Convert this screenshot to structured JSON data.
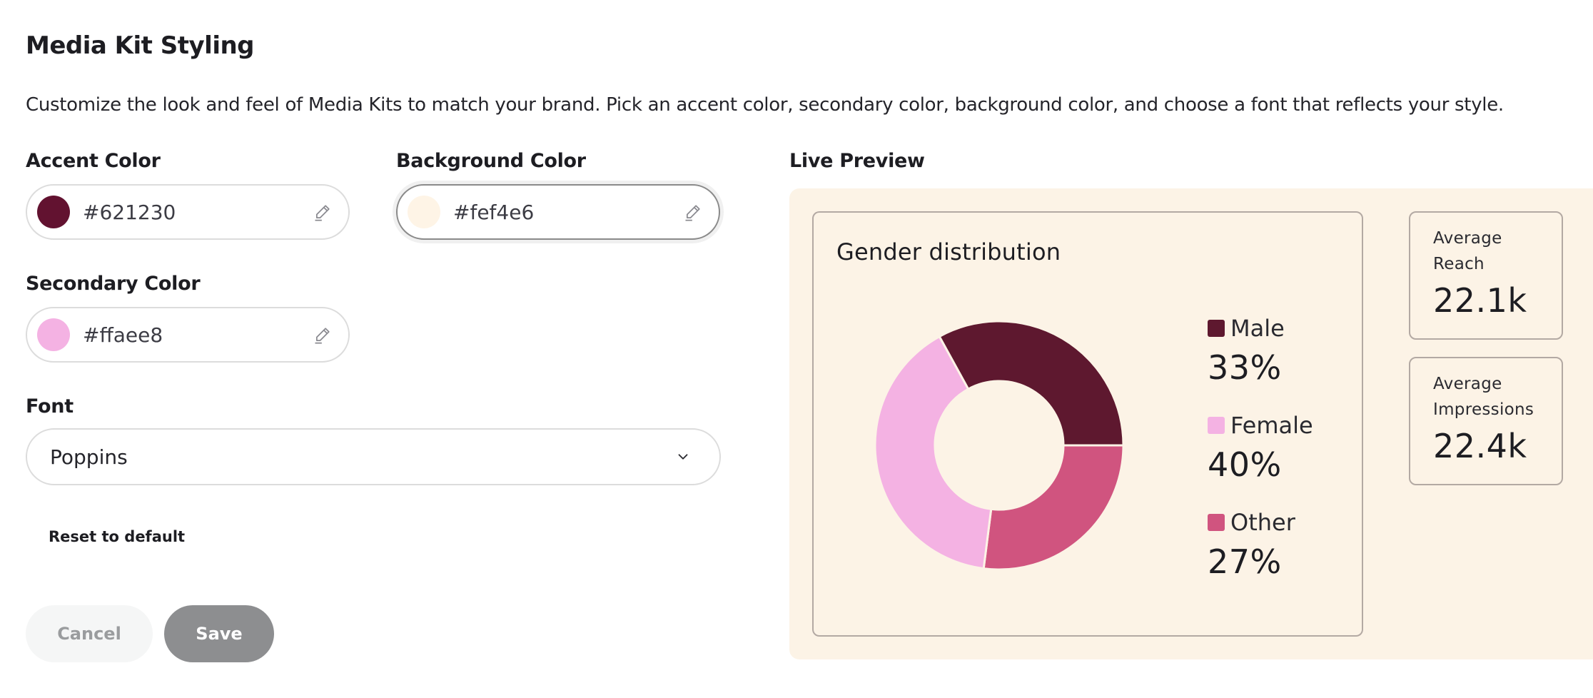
{
  "page": {
    "title": "Media Kit Styling",
    "description": "Customize the look and feel of Media Kits to match your brand. Pick an accent color, secondary color, background color, and choose a font that reflects your style."
  },
  "form": {
    "accent": {
      "label": "Accent Color",
      "value": "#621230",
      "swatch": "#621230",
      "icon": "pencil-icon"
    },
    "background": {
      "label": "Background Color",
      "value": "#fef4e6",
      "swatch": "#fef4e6",
      "icon": "pencil-icon"
    },
    "secondary": {
      "label": "Secondary Color",
      "value": "#ffaee8",
      "swatch": "#ffaee8",
      "icon": "pencil-icon"
    },
    "font": {
      "label": "Font",
      "value": "Poppins",
      "icon": "chevron-down-icon"
    },
    "reset_label": "Reset to default",
    "cancel_label": "Cancel",
    "save_label": "Save"
  },
  "preview": {
    "label": "Live Preview",
    "background": "#fcf3e6",
    "gender_card": {
      "title": "Gender distribution",
      "items": [
        {
          "name": "Male",
          "percent": "33%",
          "color": "#5e182f"
        },
        {
          "name": "Female",
          "percent": "40%",
          "color": "#f4b2e3"
        },
        {
          "name": "Other",
          "percent": "27%",
          "color": "#d0547f"
        }
      ]
    },
    "stats": [
      {
        "label": "Average\nReach",
        "value": "22.1k"
      },
      {
        "label": "Average\nImpressions",
        "value": "22.4k"
      }
    ]
  },
  "chart_data": {
    "type": "pie",
    "title": "Gender distribution",
    "categories": [
      "Male",
      "Female",
      "Other"
    ],
    "values": [
      33,
      40,
      27
    ],
    "colors": [
      "#5e182f",
      "#f4b2e3",
      "#d0547f"
    ],
    "donut": true,
    "legend": "right"
  }
}
